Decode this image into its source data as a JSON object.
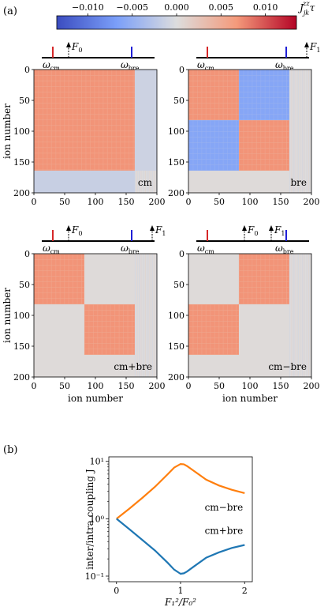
{
  "panel_a_label": "(a)",
  "panel_b_label": "(b)",
  "colorbar": {
    "ticks": [
      "−0.010",
      "−0.005",
      "0.000",
      "0.005",
      "0.010"
    ],
    "tick_values": [
      -0.01,
      -0.005,
      0.0,
      0.005,
      0.01
    ],
    "range": [
      -0.0135,
      0.0135
    ],
    "label": "J_jk^zz τ",
    "colors": {
      "negative": "#3b4cc0",
      "zero": "#dddddd",
      "positive": "#b40426"
    }
  },
  "spectrum_labels": {
    "cm": "ω",
    "cm_sub": "cm",
    "bre": "ω",
    "bre_sub": "bre",
    "F0": "F",
    "F0_sub": "0",
    "F1": "F",
    "F1_sub": "1"
  },
  "matrix_axes": {
    "ylabel": "ion number",
    "xlabel": "ion number",
    "ticks": [
      "0",
      "50",
      "100",
      "150",
      "200"
    ],
    "tick_values": [
      0,
      50,
      100,
      150,
      200
    ]
  },
  "matrices": [
    {
      "tag": "cm",
      "blocks": [
        {
          "r0": 0,
          "r1": 164,
          "c0": 0,
          "c1": 164,
          "v": 0.007
        }
      ],
      "pos": "top-left",
      "forces": [
        "F0"
      ]
    },
    {
      "tag": "bre",
      "blocks": [
        {
          "r0": 0,
          "r1": 82,
          "c0": 0,
          "c1": 82,
          "v": 0.007
        },
        {
          "r0": 82,
          "r1": 164,
          "c0": 82,
          "c1": 164,
          "v": 0.007
        },
        {
          "r0": 0,
          "r1": 82,
          "c0": 82,
          "c1": 164,
          "v": -0.006
        },
        {
          "r0": 82,
          "r1": 164,
          "c0": 0,
          "c1": 82,
          "v": -0.006
        }
      ],
      "pos": "top-right",
      "forces": [
        "F1"
      ]
    },
    {
      "tag": "cm+bre",
      "blocks": [
        {
          "r0": 0,
          "r1": 82,
          "c0": 0,
          "c1": 82,
          "v": 0.007
        },
        {
          "r0": 82,
          "r1": 164,
          "c0": 82,
          "c1": 164,
          "v": 0.007
        }
      ],
      "pos": "bottom-left",
      "forces": [
        "F0",
        "F1"
      ]
    },
    {
      "tag": "cm−bre",
      "blocks": [
        {
          "r0": 0,
          "r1": 82,
          "c0": 82,
          "c1": 164,
          "v": 0.007
        },
        {
          "r0": 82,
          "r1": 164,
          "c0": 0,
          "c1": 82,
          "v": 0.007
        }
      ],
      "pos": "bottom-right",
      "forces": [
        "F0",
        "F1"
      ]
    }
  ],
  "chart_data": {
    "type": "line",
    "xlabel": "F_1^2 / F_0^2",
    "ylabel": "inter/intra coupling J_rel",
    "yscale": "log",
    "xlim": [
      -0.12,
      2.12
    ],
    "ylim": [
      0.08,
      12
    ],
    "xticks": [
      "0",
      "1",
      "2"
    ],
    "xtick_values": [
      0,
      1,
      2
    ],
    "yticks": [
      "10⁻¹",
      "10⁰",
      "10¹"
    ],
    "ytick_values": [
      0.1,
      1,
      10
    ],
    "series": [
      {
        "name": "cm−bre",
        "color": "#ff7f0e",
        "x": [
          0,
          0.2,
          0.4,
          0.6,
          0.8,
          0.9,
          1.0,
          1.05,
          1.1,
          1.2,
          1.4,
          1.6,
          1.8,
          2.0
        ],
        "y": [
          1.0,
          1.5,
          2.3,
          3.6,
          6.0,
          7.8,
          9.0,
          8.9,
          8.3,
          6.9,
          4.8,
          3.8,
          3.2,
          2.8
        ]
      },
      {
        "name": "cm+bre",
        "color": "#1f77b4",
        "x": [
          0,
          0.2,
          0.4,
          0.6,
          0.8,
          0.9,
          1.0,
          1.05,
          1.1,
          1.2,
          1.4,
          1.6,
          1.8,
          2.0
        ],
        "y": [
          1.0,
          0.66,
          0.43,
          0.28,
          0.17,
          0.13,
          0.11,
          0.112,
          0.12,
          0.145,
          0.21,
          0.26,
          0.31,
          0.35
        ]
      }
    ]
  }
}
